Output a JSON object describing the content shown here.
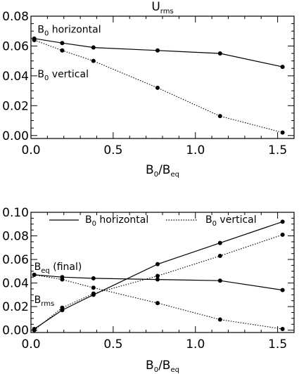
{
  "chart_data": [
    {
      "type": "line",
      "title": "U",
      "title_sub": "rms",
      "xlabel": "B",
      "xlabel_sub1": "0",
      "xlabel_mid": "/B",
      "xlabel_sub2": "eq",
      "xlim": [
        0,
        1.6
      ],
      "ylim": [
        -0.002,
        0.08
      ],
      "xticks": [
        0.0,
        0.5,
        1.0,
        1.5
      ],
      "xtick_labels": [
        "0.0",
        "0.5",
        "1.0",
        "1.5"
      ],
      "yticks": [
        0.0,
        0.02,
        0.04,
        0.06,
        0.08
      ],
      "ytick_labels": [
        "0.00",
        "0.02",
        "0.04",
        "0.06",
        "0.08"
      ],
      "series": [
        {
          "style": "solid",
          "x": [
            0.02,
            0.19,
            0.38,
            0.77,
            1.15,
            1.53
          ],
          "y": [
            0.065,
            0.062,
            0.059,
            0.057,
            0.055,
            0.046
          ]
        },
        {
          "style": "dotted",
          "x": [
            0.02,
            0.19,
            0.38,
            0.77,
            1.15,
            1.53
          ],
          "y": [
            0.064,
            0.057,
            0.05,
            0.032,
            0.013,
            0.002
          ]
        }
      ],
      "annotations": [
        {
          "main": "B",
          "sub": "0",
          "rest": " horizontal",
          "x": 0.04,
          "y": 0.069
        },
        {
          "main": "B",
          "sub": "0",
          "rest": " vertical",
          "x": 0.04,
          "y": 0.039
        }
      ]
    },
    {
      "type": "line",
      "xlabel": "B",
      "xlabel_sub1": "0",
      "xlabel_mid": "/B",
      "xlabel_sub2": "eq",
      "xlim": [
        0,
        1.6
      ],
      "ylim": [
        -0.002,
        0.1
      ],
      "xticks": [
        0.0,
        0.5,
        1.0,
        1.5
      ],
      "xtick_labels": [
        "0.0",
        "0.5",
        "1.0",
        "1.5"
      ],
      "yticks": [
        0.0,
        0.02,
        0.04,
        0.06,
        0.08,
        0.1
      ],
      "ytick_labels": [
        "0.00",
        "0.02",
        "0.04",
        "0.06",
        "0.08",
        "0.10"
      ],
      "legend": [
        {
          "style": "solid",
          "main": "B",
          "sub": "0",
          "rest": " horizontal"
        },
        {
          "style": "dotted",
          "main": "B",
          "sub": "0",
          "rest": " vertical"
        }
      ],
      "series": [
        {
          "style": "solid",
          "x": [
            0.02,
            0.19,
            0.38,
            0.77,
            1.15,
            1.53
          ],
          "y": [
            0.047,
            0.045,
            0.044,
            0.043,
            0.042,
            0.034
          ]
        },
        {
          "style": "dotted",
          "x": [
            0.02,
            0.19,
            0.38,
            0.77,
            1.15,
            1.53
          ],
          "y": [
            0.047,
            0.043,
            0.036,
            0.023,
            0.009,
            0.001
          ]
        },
        {
          "style": "solid",
          "x": [
            0.02,
            0.19,
            0.38,
            0.77,
            1.15,
            1.53
          ],
          "y": [
            0.001,
            0.017,
            0.03,
            0.056,
            0.074,
            0.092
          ]
        },
        {
          "style": "dotted",
          "x": [
            0.02,
            0.19,
            0.38,
            0.77,
            1.15,
            1.53
          ],
          "y": [
            0.0,
            0.019,
            0.031,
            0.046,
            0.063,
            0.081
          ]
        }
      ],
      "annotations": [
        {
          "main": "B",
          "sub": "eq",
          "rest": " (final)",
          "x": 0.02,
          "y": 0.051
        },
        {
          "main": "B",
          "sub": "rms",
          "rest": "",
          "x": 0.02,
          "y": 0.023
        }
      ]
    }
  ]
}
